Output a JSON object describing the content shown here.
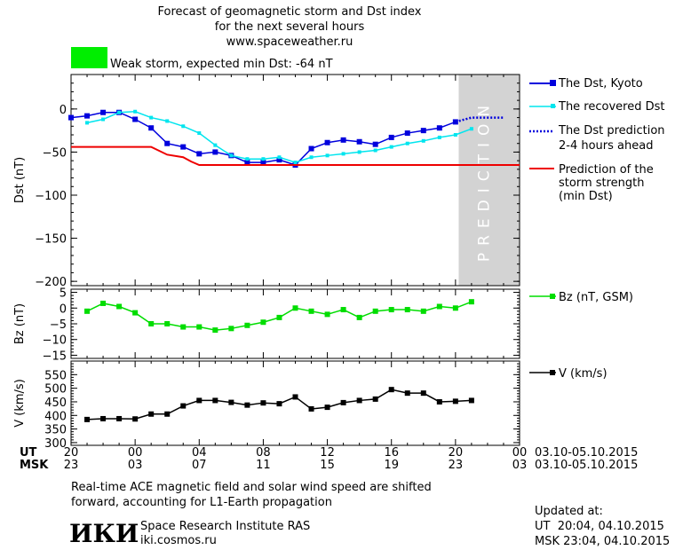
{
  "header": {
    "title_line1": "Forecast of geomagnetic storm and Dst index",
    "title_line2": "for the next several hours",
    "site": "www.spaceweather.ru"
  },
  "storm_status": {
    "text": "Weak storm, expected min Dst: -64 nT",
    "color": "#00ee00"
  },
  "prediction_label": "PREDICTION",
  "time_axis": {
    "ut_label": "UT",
    "msk_label": "MSK",
    "ut_ticks": [
      "20",
      "00",
      "04",
      "08",
      "12",
      "16",
      "20",
      "00"
    ],
    "msk_ticks": [
      "23",
      "03",
      "07",
      "11",
      "15",
      "19",
      "23",
      "03"
    ],
    "ut_range": "03.10-05.10.2015",
    "msk_range": "03.10-05.10.2015"
  },
  "chart_data": [
    {
      "type": "line",
      "ylabel": "Dst (nT)",
      "xlim_hours_since_20UT_03.10": [
        0,
        28
      ],
      "ylim": [
        -205,
        40
      ],
      "yticks": [
        0,
        -50,
        -100,
        -150,
        -200
      ],
      "prediction_region_hours": [
        24.2,
        28
      ],
      "series": [
        {
          "name": "The Dst, Kyoto",
          "color": "#0000dd",
          "x": [
            0,
            1,
            2,
            3,
            4,
            5,
            6,
            7,
            8,
            9,
            10,
            11,
            12,
            13,
            14,
            15,
            16,
            17,
            18,
            19,
            20,
            21,
            22,
            23,
            24
          ],
          "y": [
            -10,
            -8,
            -4,
            -4,
            -12,
            -22,
            -40,
            -44,
            -52,
            -50,
            -54,
            -62,
            -62,
            -59,
            -65,
            -46,
            -39,
            -36,
            -38,
            -41,
            -33,
            -28,
            -25,
            -22,
            -15
          ]
        },
        {
          "name": "The recovered Dst",
          "color": "#00e5ee",
          "x": [
            1,
            2,
            3,
            4,
            5,
            6,
            7,
            8,
            9,
            10,
            11,
            12,
            13,
            14,
            15,
            16,
            17,
            18,
            19,
            20,
            21,
            22,
            23,
            24,
            25
          ],
          "y": [
            -16,
            -12,
            -4,
            -3,
            -10,
            -14,
            -20,
            -28,
            -42,
            -54,
            -58,
            -58,
            -56,
            -62,
            -56,
            -54,
            -52,
            -50,
            -48,
            -44,
            -40,
            -37,
            -33,
            -30,
            -23
          ]
        },
        {
          "name": "The Dst prediction 2-4 hours ahead",
          "color": "#0000dd",
          "x": [
            24,
            25,
            26,
            27
          ],
          "y": [
            -15,
            -10,
            -10,
            -10
          ]
        },
        {
          "name": "Prediction of the storm strength (min Dst)",
          "color": "#ee0000",
          "x": [
            0,
            5,
            6,
            7,
            7.5,
            8,
            28
          ],
          "y": [
            -44,
            -44,
            -53,
            -56,
            -61,
            -65,
            -65
          ]
        }
      ]
    },
    {
      "type": "line",
      "ylabel": "Bz (nT)",
      "ylim": [
        -16,
        6
      ],
      "yticks": [
        5,
        0,
        -5,
        -10,
        -15
      ],
      "series": [
        {
          "name": "Bz (nT, GSM)",
          "color": "#00dd00",
          "x": [
            1,
            2,
            3,
            4,
            5,
            6,
            7,
            8,
            9,
            10,
            11,
            12,
            13,
            14,
            15,
            16,
            17,
            18,
            19,
            20,
            21,
            22,
            23,
            24,
            25
          ],
          "y": [
            -1,
            1.5,
            0.5,
            -1.5,
            -5,
            -5,
            -6,
            -6,
            -7,
            -6.5,
            -5.5,
            -4.5,
            -3,
            0,
            -1,
            -2,
            -0.5,
            -3,
            -1,
            -0.5,
            -0.5,
            -1,
            0.5,
            0,
            2
          ]
        }
      ]
    },
    {
      "type": "line",
      "ylabel": "V (km/s)",
      "ylim": [
        290,
        600
      ],
      "yticks": [
        550,
        500,
        450,
        400,
        350,
        300
      ],
      "series": [
        {
          "name": "V (km/s)",
          "color": "#000000",
          "x": [
            1,
            2,
            3,
            4,
            5,
            6,
            7,
            8,
            9,
            10,
            11,
            12,
            13,
            14,
            15,
            16,
            17,
            18,
            19,
            20,
            21,
            22,
            23,
            24,
            25
          ],
          "y": [
            385,
            388,
            388,
            387,
            405,
            405,
            435,
            455,
            455,
            448,
            438,
            446,
            443,
            468,
            424,
            430,
            447,
            455,
            460,
            495,
            482,
            482,
            450,
            452,
            455
          ]
        }
      ]
    }
  ],
  "legend": {
    "dst_kyoto": "The Dst, Kyoto",
    "dst_recovered": "The recovered Dst",
    "dst_prediction_line1": "The Dst prediction",
    "dst_prediction_line2": "2-4 hours ahead",
    "storm_line1": "Prediction of the",
    "storm_line2": "storm strength",
    "storm_line3": "(min Dst)",
    "bz": "Bz (nT, GSM)",
    "v": "V (km/s)"
  },
  "note": {
    "line1": "Real-time ACE magnetic field and solar wind speed are shifted",
    "line2": "forward, accounting for L1-Earth propagation"
  },
  "footer": {
    "logo_text": "ИКИ",
    "institute": "Space Research Institute RAS",
    "site": "iki.cosmos.ru",
    "updated_label": "Updated at:",
    "updated_ut": "UT  20:04, 04.10.2015",
    "updated_msk": "MSK 23:04, 04.10.2015"
  },
  "colors": {
    "prediction_bg": "#d3d3d3",
    "axis": "#000000"
  }
}
